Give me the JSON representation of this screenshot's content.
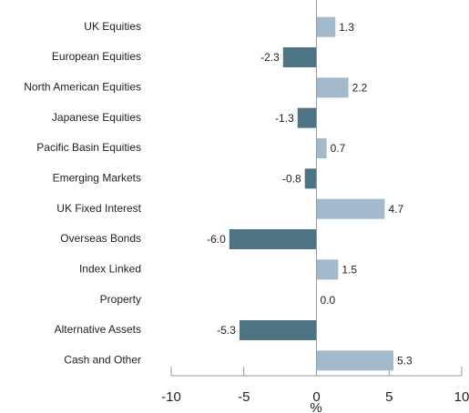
{
  "chart_data": {
    "type": "barh",
    "categories": [
      "UK Equities",
      "European Equities",
      "North American Equities",
      "Japanese Equities",
      "Pacific Basin Equities",
      "Emerging Markets",
      "UK Fixed Interest",
      "Overseas Bonds",
      "Index Linked",
      "Property",
      "Alternative Assets",
      "Cash and Other"
    ],
    "values": [
      1.3,
      -2.3,
      2.2,
      -1.3,
      0.7,
      -0.8,
      4.7,
      -6.0,
      1.5,
      0.0,
      -5.3,
      5.3
    ],
    "value_labels": [
      "1.3",
      "-2.3",
      "2.2",
      "-1.3",
      "0.7",
      "-0.8",
      "4.7",
      "-6.0",
      "1.5",
      "0.0",
      "-5.3",
      "5.3"
    ],
    "positive_color": "#a3bacd",
    "negative_color": "#4e7383",
    "x_label": "%",
    "xlim": [
      -10,
      10
    ],
    "xticks": [
      -10,
      -5,
      0,
      5,
      10
    ]
  }
}
